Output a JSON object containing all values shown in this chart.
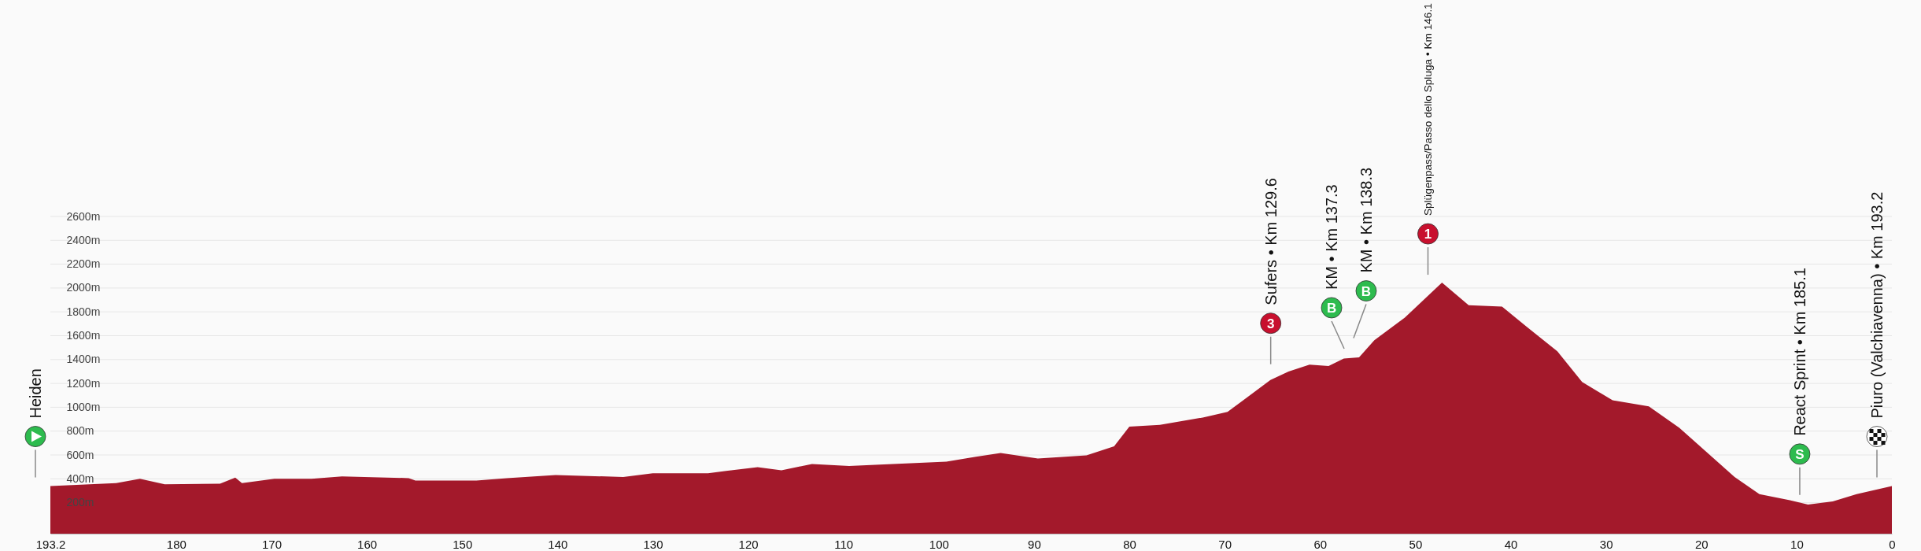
{
  "chart_data": {
    "type": "area",
    "color": "#a3192b",
    "x": [
      193.2,
      186.3,
      183.8,
      181.2,
      175.4,
      173.8,
      173.1,
      169.7,
      165.8,
      162.6,
      155.6,
      154.9,
      148.5,
      145.3,
      140.2,
      133.1,
      130,
      124.2,
      122.3,
      119,
      116.5,
      113.3,
      109.4,
      106.2,
      99.2,
      96.1,
      93.5,
      89.6,
      84.5,
      81.6,
      80,
      76.8,
      72.3,
      69.7,
      65.2,
      63.3,
      61.1,
      59.1,
      57.5,
      55.9,
      54.3,
      51.1,
      47.2,
      44.4,
      40.9,
      38.3,
      35.1,
      32.5,
      29.3,
      25.5,
      22.3,
      16.5,
      13.9,
      10.7,
      8.8,
      6.2,
      3.7,
      0
    ],
    "values": [
      339,
      364,
      400,
      354,
      359,
      411,
      364,
      400,
      400,
      421,
      406,
      385,
      385,
      406,
      431,
      416,
      447,
      447,
      467,
      498,
      472,
      524,
      508,
      519,
      544,
      585,
      616,
      570,
      596,
      673,
      837,
      853,
      914,
      961,
      1228,
      1300,
      1357,
      1346,
      1408,
      1418,
      1562,
      1752,
      2045,
      1855,
      1845,
      1675,
      1470,
      1213,
      1058,
      1007,
      827,
      416,
      272,
      221,
      185,
      210,
      272,
      339
    ],
    "xlim": [
      193.2,
      0
    ],
    "xticks": [
      193.2,
      180,
      170,
      160,
      150,
      140,
      130,
      120,
      110,
      100,
      90,
      80,
      70,
      60,
      50,
      40,
      30,
      20,
      10,
      0
    ],
    "ylim": [
      -60,
      2600
    ],
    "yticks": [
      {
        "value": 200,
        "label": "200m"
      },
      {
        "value": 400,
        "label": "400m"
      },
      {
        "value": 600,
        "label": "600m"
      },
      {
        "value": 800,
        "label": "800m"
      },
      {
        "value": 1000,
        "label": "1000m"
      },
      {
        "value": 1200,
        "label": "1200m"
      },
      {
        "value": 1400,
        "label": "1400m"
      },
      {
        "value": 1600,
        "label": "1600m"
      },
      {
        "value": 1800,
        "label": "1800m"
      },
      {
        "value": 2000,
        "label": "2000m"
      },
      {
        "value": 2200,
        "label": "2200m"
      },
      {
        "value": 2400,
        "label": "2400m"
      },
      {
        "value": 2600,
        "label": "2600m"
      }
    ],
    "grid": "y",
    "annotations": [
      "Heiden",
      "3",
      "Sufers • Km 129.6",
      "B",
      "KM • Km 137.3",
      "B",
      "KM • Km 138.3",
      "1",
      "Splügenpass/Passo dello Spluga • Km 146.1",
      "S",
      "React Sprint • Km 185.1",
      "Piuro (Valchiavenna) • Km 193.2"
    ]
  }
}
